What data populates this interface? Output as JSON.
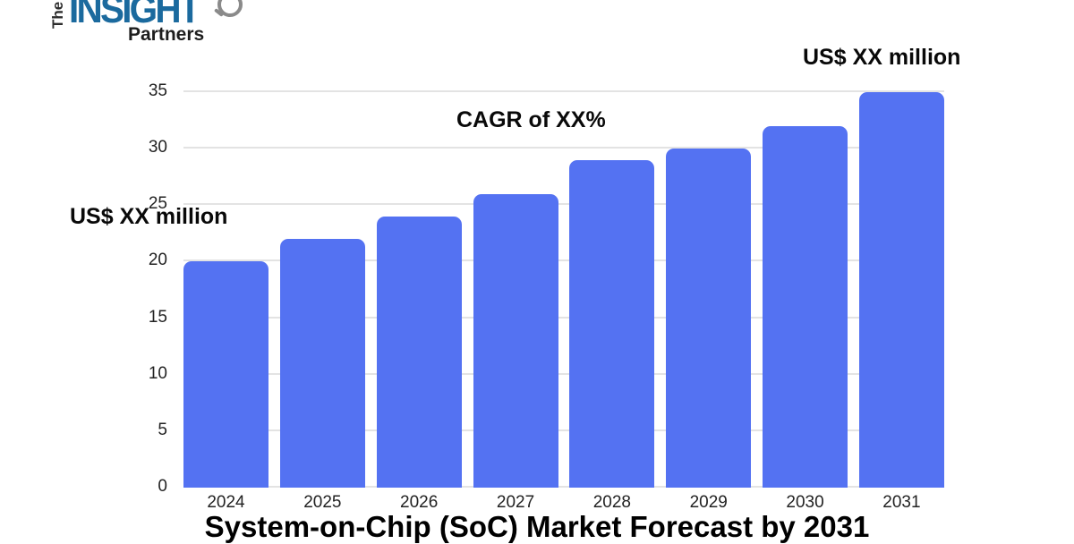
{
  "logo": {
    "the": "The",
    "insight": "INSIGHT",
    "partners": "Partners",
    "insight_color": "#1b6a9e",
    "magnifier_color": "#8a8a8a"
  },
  "annotations": {
    "left_value": "US$ XX million",
    "cagr": "CAGR of XX%",
    "right_value": "US$ XX million"
  },
  "title": "System-on-Chip (SoC) Market Forecast by 2031",
  "chart_data": {
    "type": "bar",
    "categories": [
      "2024",
      "2025",
      "2026",
      "2027",
      "2028",
      "2029",
      "2030",
      "2031"
    ],
    "values": [
      20,
      22,
      24,
      26,
      29,
      30,
      32,
      35
    ],
    "title": "System-on-Chip (SoC) Market Forecast by 2031",
    "xlabel": "",
    "ylabel": "",
    "ylim": [
      0,
      35
    ],
    "yticks": [
      0,
      5,
      10,
      15,
      20,
      25,
      30,
      35
    ],
    "bar_color": "#5472f2",
    "gridline_color": "#e3e3e3",
    "grid": "horizontal",
    "legend": "none",
    "annotations": [
      "US$ XX million",
      "CAGR of XX%",
      "US$ XX million"
    ]
  }
}
